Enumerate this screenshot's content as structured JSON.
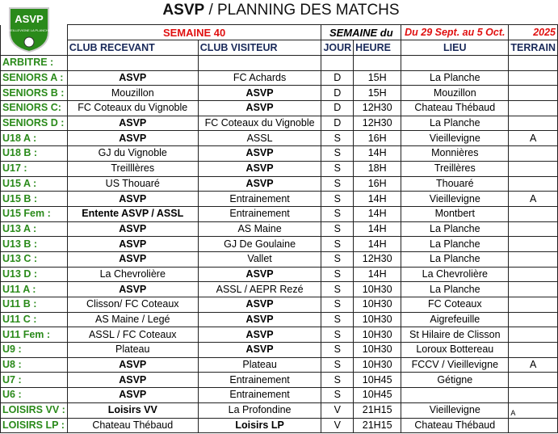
{
  "title": {
    "bold": "ASVP",
    "rest": " / PLANNING DES MATCHS"
  },
  "logo": {
    "text": "ASVP",
    "sub": "VIEILLEVIGNE LA PLANCHE",
    "year": "2010"
  },
  "week": {
    "label": "SEMAINE 40",
    "semaine_du": "SEMAINE du",
    "dates": "Du 29 Sept. au 5 Oct.",
    "year": "2025"
  },
  "colors": {
    "green": "#2a8a1a",
    "red": "#e01010",
    "navy": "#1a2a5a"
  },
  "headers": {
    "home": "CLUB RECEVANT",
    "away": "CLUB VISITEUR",
    "day": "JOUR",
    "time": "HEURE",
    "place": "LIEU",
    "field": "TERRAIN"
  },
  "rows": [
    {
      "team": "ARBITRE :",
      "home": "",
      "away": "",
      "day": "",
      "time": "",
      "place": "",
      "field": "",
      "bold": ""
    },
    {
      "team": "SENIORS A :",
      "home": "ASVP",
      "away": "FC Achards",
      "day": "D",
      "time": "15H",
      "place": "La Planche",
      "field": "",
      "bold": "home"
    },
    {
      "team": "SENIORS B :",
      "home": "Mouzillon",
      "away": "ASVP",
      "day": "D",
      "time": "15H",
      "place": "Mouzillon",
      "field": "",
      "bold": "away"
    },
    {
      "team": "SENIORS C:",
      "home": "FC Coteaux du Vignoble",
      "away": "ASVP",
      "day": "D",
      "time": "12H30",
      "place": "Chateau Thébaud",
      "field": "",
      "bold": "away"
    },
    {
      "team": "SENIORS D :",
      "home": "ASVP",
      "away": "FC Coteaux du Vignoble",
      "day": "D",
      "time": "12H30",
      "place": "La Planche",
      "field": "",
      "bold": "home"
    },
    {
      "team": "U18 A :",
      "home": "ASVP",
      "away": "ASSL",
      "day": "S",
      "time": "16H",
      "place": "Vieillevigne",
      "field": "A",
      "bold": "home"
    },
    {
      "team": "U18 B :",
      "home": "GJ du Vignoble",
      "away": "ASVP",
      "day": "S",
      "time": "14H",
      "place": "Monnières",
      "field": "",
      "bold": "away"
    },
    {
      "team": "U17 :",
      "home": "Treilllères",
      "away": "ASVP",
      "day": "S",
      "time": "18H",
      "place": "Treillères",
      "field": "",
      "bold": "away"
    },
    {
      "team": "U15 A :",
      "home": "US Thouaré",
      "away": "ASVP",
      "day": "S",
      "time": "16H",
      "place": "Thouaré",
      "field": "",
      "bold": "away"
    },
    {
      "team": "U15 B :",
      "home": "ASVP",
      "away": "Entrainement",
      "day": "S",
      "time": "14H",
      "place": "Vieillevigne",
      "field": "A",
      "bold": "home"
    },
    {
      "team": "U15 Fem :",
      "home": "Entente ASVP / ASSL",
      "away": "Entrainement",
      "day": "S",
      "time": "14H",
      "place": "Montbert",
      "field": "",
      "bold": "home"
    },
    {
      "team": "U13 A :",
      "home": "ASVP",
      "away": "AS Maine",
      "day": "S",
      "time": "14H",
      "place": "La Planche",
      "field": "",
      "bold": "home"
    },
    {
      "team": "U13 B :",
      "home": "ASVP",
      "away": "GJ De Goulaine",
      "day": "S",
      "time": "14H",
      "place": "La Planche",
      "field": "",
      "bold": "home"
    },
    {
      "team": "U13 C :",
      "home": "ASVP",
      "away": "Vallet",
      "day": "S",
      "time": "12H30",
      "place": "La Planche",
      "field": "",
      "bold": "home"
    },
    {
      "team": "U13 D :",
      "home": "La Chevrolière",
      "away": "ASVP",
      "day": "S",
      "time": "14H",
      "place": "La Chevrolière",
      "field": "",
      "bold": "away"
    },
    {
      "team": "U11 A :",
      "home": "ASVP",
      "away": "ASSL / AEPR Rezé",
      "day": "S",
      "time": "10H30",
      "place": "La Planche",
      "field": "",
      "bold": "home"
    },
    {
      "team": "U11 B :",
      "home": "Clisson/ FC Coteaux",
      "away": "ASVP",
      "day": "S",
      "time": "10H30",
      "place": "FC Coteaux",
      "field": "",
      "bold": "away"
    },
    {
      "team": "U11 C :",
      "home": "AS Maine / Legé",
      "away": "ASVP",
      "day": "S",
      "time": "10H30",
      "place": "Aigrefeuille",
      "field": "",
      "bold": "away"
    },
    {
      "team": "U11 Fem :",
      "home": "ASSL / FC Coteaux",
      "away": "ASVP",
      "day": "S",
      "time": "10H30",
      "place": "St Hilaire de Clisson",
      "field": "",
      "bold": "away"
    },
    {
      "team": "U9 :",
      "home": "Plateau",
      "away": "ASVP",
      "day": "S",
      "time": "10H30",
      "place": "Loroux Bottereau",
      "field": "",
      "bold": "away"
    },
    {
      "team": "U8 :",
      "home": "ASVP",
      "away": "Plateau",
      "day": "S",
      "time": "10H30",
      "place": "FCCV / Vieillevigne",
      "field": "A",
      "bold": "home"
    },
    {
      "team": "U7 :",
      "home": "ASVP",
      "away": "Entrainement",
      "day": "S",
      "time": "10H45",
      "place": "Gétigne",
      "field": "",
      "bold": "home"
    },
    {
      "team": "U6 :",
      "home": "ASVP",
      "away": "Entrainement",
      "day": "S",
      "time": "10H45",
      "place": "",
      "field": "",
      "bold": "home"
    },
    {
      "team": "LOISIRS VV :",
      "home": "Loisirs VV",
      "away": "La Profondine",
      "day": "V",
      "time": "21H15",
      "place": "Vieillevigne",
      "field": "A",
      "bold": "home",
      "field_small": true
    },
    {
      "team": "LOISIRS LP :",
      "home": "Chateau Thébaud",
      "away": "Loisirs LP",
      "day": "V",
      "time": "21H15",
      "place": "Chateau Thébaud",
      "field": "",
      "bold": "away"
    }
  ]
}
